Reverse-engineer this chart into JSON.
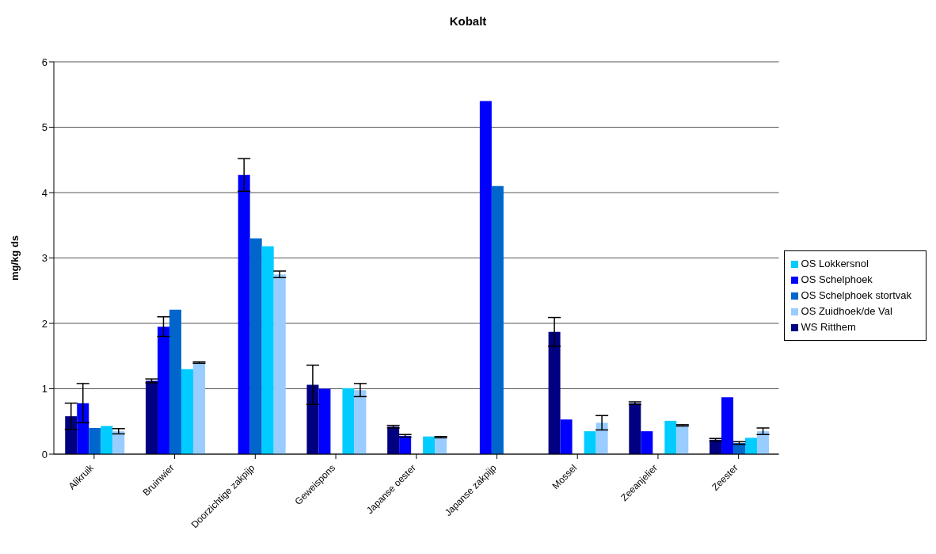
{
  "chart_data": {
    "type": "bar",
    "title": "Kobalt",
    "ylabel": "mg/kg ds",
    "categories": [
      "Alikruik",
      "Bruinwier",
      "Doorzichtige zakpijp",
      "Geweispons",
      "Japanse oester",
      "Japanse zakpijp",
      "Mossel",
      "Zeeanjelier",
      "Zeester"
    ],
    "series": [
      {
        "name": "WS Ritthem",
        "color": "#000080",
        "values": [
          0.58,
          1.12,
          null,
          1.06,
          0.42,
          null,
          1.87,
          0.78,
          0.22
        ],
        "errors": [
          0.2,
          0.03,
          null,
          0.3,
          0.02,
          null,
          0.22,
          0.02,
          0.02
        ]
      },
      {
        "name": "OS Schelphoek",
        "color": "#0000ff",
        "values": [
          0.78,
          1.95,
          4.27,
          1.0,
          0.28,
          5.4,
          0.53,
          0.35,
          0.87
        ],
        "errors": [
          0.3,
          0.15,
          0.25,
          null,
          0.02,
          null,
          null,
          null,
          null
        ]
      },
      {
        "name": "OS Schelphoek stortvak",
        "color": "#0066cc",
        "values": [
          0.4,
          2.21,
          3.3,
          null,
          null,
          4.1,
          null,
          null,
          0.17
        ],
        "errors": [
          null,
          null,
          null,
          null,
          null,
          null,
          null,
          null,
          0.02
        ]
      },
      {
        "name": "OS Lokkersnol",
        "color": "#00ccff",
        "values": [
          0.43,
          1.3,
          3.18,
          1.01,
          0.27,
          null,
          0.35,
          0.51,
          0.25
        ]
      },
      {
        "name": "OS Zuidhoek/de Val",
        "color": "#99ccff",
        "values": [
          0.35,
          1.4,
          2.75,
          0.98,
          0.26,
          null,
          0.48,
          0.44,
          0.35
        ],
        "errors": [
          0.04,
          0.01,
          0.05,
          0.1,
          0.01,
          null,
          0.11,
          0.01,
          0.05
        ]
      }
    ],
    "ylim": [
      0,
      6
    ],
    "yticks": [
      0,
      1,
      2,
      3,
      4,
      5,
      6
    ],
    "grid": "y",
    "legend": "right"
  }
}
